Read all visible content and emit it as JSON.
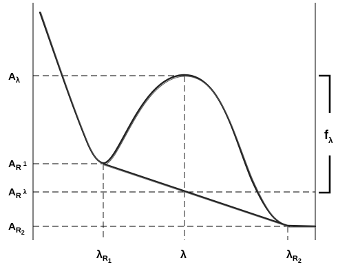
{
  "labels": {
    "a_lambda": {
      "main": "A",
      "sub": "λ"
    },
    "a_r1": {
      "main": "A",
      "sub": "R",
      "subsub": "1"
    },
    "a_rlambda": {
      "main": "A",
      "sub": "R",
      "subsub": "λ"
    },
    "a_r2": {
      "main": "A",
      "sub": "R",
      "subsub": "2"
    },
    "lambda_r1": {
      "main": "λ",
      "sub": "R",
      "subsub": "1"
    },
    "lambda": {
      "main": "λ"
    },
    "lambda_r2": {
      "main": "λ",
      "sub": "R",
      "subsub": "2"
    },
    "f_lambda": {
      "main": "f",
      "sub": "λ"
    }
  }
}
